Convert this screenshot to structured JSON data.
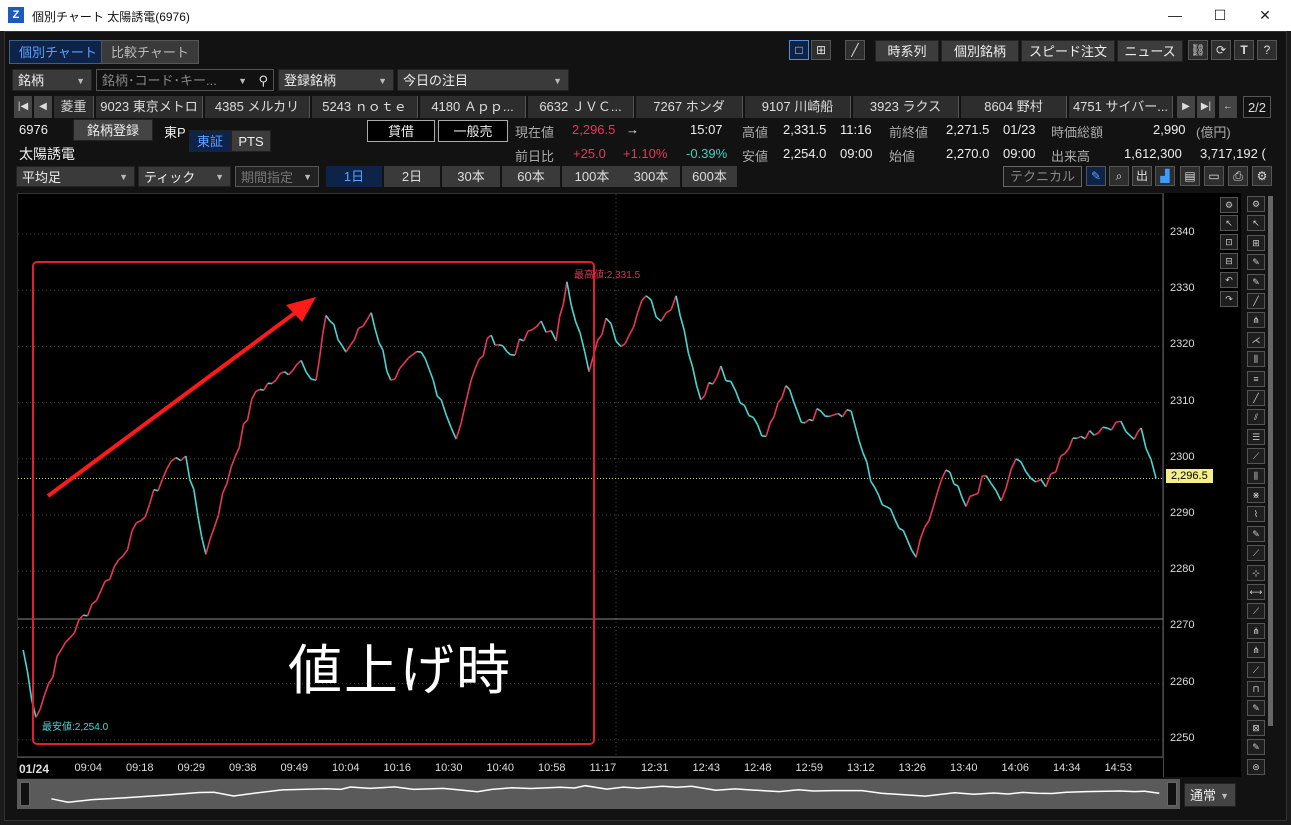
{
  "window": {
    "title": "個別チャート 太陽誘電(6976)",
    "minimize": "—",
    "maximize": "☐",
    "close": "✕",
    "logo": "Z"
  },
  "tabs": [
    {
      "label": "個別チャート",
      "active": true
    },
    {
      "label": "比較チャート",
      "active": false
    }
  ],
  "top_toolbar": {
    "layout_single": "□",
    "layout_grid": "⊞",
    "pen": "╱",
    "buttons": [
      "時系列",
      "個別銘柄",
      "スピード注文",
      "ニュース"
    ],
    "icons": [
      "⛓",
      "⟳",
      "T",
      "?"
    ]
  },
  "search_row": {
    "type_select": "銘柄",
    "search_placeholder": "銘柄･コード･キー...",
    "search_icon": "⚲",
    "registered_select": "登録銘柄",
    "watchlist_select": "今日の注目"
  },
  "ticker_bar": {
    "items": [
      "菱重",
      "9023 東京メトロ",
      "4385 メルカリ",
      "5243 ｎｏｔｅ",
      "4180 Ａｐｐ...",
      "6632 ＪＶＣ...",
      "7267 ホンダ",
      "9107 川崎船",
      "3923 ラクス",
      "8604 野村",
      "4751 サイバー..."
    ],
    "page": "2/2"
  },
  "stock": {
    "code": "6976",
    "name": "太陽誘電",
    "register_button": "銘柄登録",
    "market": "東P",
    "exchange_tabs": [
      "東証",
      "PTS"
    ],
    "margin_buttons": [
      "貸借",
      "一般売"
    ],
    "current_label": "現在値",
    "current": "2,296.5",
    "arrow": "→",
    "time": "15:07",
    "change_label": "前日比",
    "change": "+25.0",
    "change_pct": "+1.10%",
    "change_pct2": "-0.39%",
    "high_label": "高値",
    "high": "2,331.5",
    "high_time": "11:16",
    "low_label": "安値",
    "low": "2,254.0",
    "low_time": "09:00",
    "prev_label": "前終値",
    "prev": "2,271.5",
    "prev_date": "01/23",
    "open_label": "始値",
    "open": "2,270.0",
    "open_time": "09:00",
    "mcap_label": "時価総額",
    "mcap": "2,990",
    "mcap_unit": "(億円)",
    "volume_label": "出来高",
    "volume": "1,612,300",
    "turnover": "3,717,192 ("
  },
  "chart_controls": {
    "candle_type": "平均足",
    "interval": "ティック",
    "range_select": "期間指定",
    "periods": [
      "1日",
      "2日",
      "30本",
      "60本",
      "100本",
      "300本",
      "600本"
    ],
    "active_period": "1日",
    "technical": "テクニカル"
  },
  "colors": {
    "up": "#e8365d",
    "down": "#49d6d0",
    "box": "#e0202a",
    "arrow": "#ff1a1a",
    "current_label_bg": "#f4ef8a"
  },
  "annotation": {
    "text": "値上げ時"
  },
  "scroll": {
    "mode": "通常"
  },
  "chart_data": {
    "type": "line",
    "title": "",
    "ylim": [
      2245,
      2345
    ],
    "yticks": [
      2340,
      2330,
      2320,
      2310,
      2300,
      2290,
      2280,
      2270,
      2260,
      2250
    ],
    "xticks": [
      "01/24",
      "09:04",
      "09:18",
      "09:29",
      "09:38",
      "09:49",
      "10:04",
      "10:16",
      "10:30",
      "10:40",
      "10:58",
      "11:17",
      "12:31",
      "12:43",
      "12:48",
      "12:59",
      "13:12",
      "13:26",
      "13:40",
      "14:06",
      "14:34",
      "14:53"
    ],
    "current_price": 2296.5,
    "current_price_label": "2,296.5",
    "high_marker": "最高値:2,331.5",
    "low_marker": "最安値:2,254.0",
    "reference_line": 2271.5,
    "points": [
      [
        -0.37,
        2270
      ],
      [
        -0.04,
        2254
      ],
      [
        0.45,
        2266
      ],
      [
        1.22,
        2276.5
      ],
      [
        2.0,
        2289
      ],
      [
        2.58,
        2299.5
      ],
      [
        2.87,
        2300.5
      ],
      [
        3.26,
        2283
      ],
      [
        3.75,
        2298.5
      ],
      [
        4.23,
        2312
      ],
      [
        4.62,
        2314
      ],
      [
        5.11,
        2317.5
      ],
      [
        5.4,
        2314
      ],
      [
        5.59,
        2325.5
      ],
      [
        5.98,
        2319
      ],
      [
        6.47,
        2326
      ],
      [
        6.85,
        2314
      ],
      [
        7.44,
        2319
      ],
      [
        7.83,
        2310.5
      ],
      [
        8.12,
        2303.5
      ],
      [
        8.41,
        2314
      ],
      [
        8.8,
        2322
      ],
      [
        9.18,
        2318.5
      ],
      [
        9.77,
        2324.5
      ],
      [
        10.06,
        2321
      ],
      [
        10.27,
        2331.5
      ],
      [
        10.7,
        2315.5
      ],
      [
        11.03,
        2325
      ],
      [
        11.32,
        2320
      ],
      [
        11.81,
        2329
      ],
      [
        12.1,
        2324.5
      ],
      [
        12.39,
        2329
      ],
      [
        12.87,
        2310.5
      ],
      [
        13.26,
        2316.5
      ],
      [
        13.55,
        2312
      ],
      [
        14.14,
        2304
      ],
      [
        14.52,
        2313
      ],
      [
        14.82,
        2306.5
      ],
      [
        15.2,
        2308.5
      ],
      [
        15.79,
        2308.5
      ],
      [
        16.17,
        2296
      ],
      [
        16.47,
        2291.5
      ],
      [
        17.05,
        2282.5
      ],
      [
        17.63,
        2298
      ],
      [
        18.02,
        2291.5
      ],
      [
        18.41,
        2297
      ],
      [
        18.7,
        2292.5
      ],
      [
        18.99,
        2300
      ],
      [
        19.28,
        2296.5
      ],
      [
        19.57,
        2295
      ],
      [
        19.86,
        2300.5
      ],
      [
        20.25,
        2304
      ],
      [
        20.93,
        2306.5
      ],
      [
        21.22,
        2304
      ],
      [
        21.42,
        2305.5
      ],
      [
        21.71,
        2296.5
      ]
    ]
  }
}
